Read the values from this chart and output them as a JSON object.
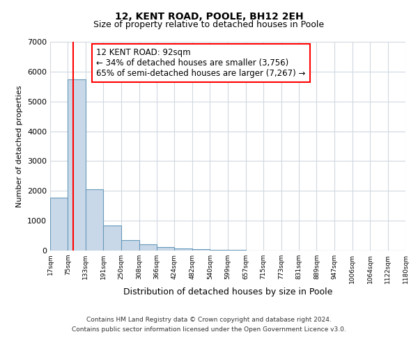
{
  "title": "12, KENT ROAD, POOLE, BH12 2EH",
  "subtitle": "Size of property relative to detached houses in Poole",
  "xlabel": "Distribution of detached houses by size in Poole",
  "ylabel": "Number of detached properties",
  "bar_edges": [
    17,
    75,
    133,
    191,
    250,
    308,
    366,
    424,
    482,
    540,
    599,
    657,
    715,
    773,
    831,
    889,
    947,
    1006,
    1064,
    1122,
    1180
  ],
  "bar_heights": [
    1780,
    5750,
    2050,
    830,
    350,
    220,
    110,
    60,
    40,
    25,
    15,
    10,
    5,
    3,
    2,
    2,
    1,
    1,
    0,
    1
  ],
  "tick_labels": [
    "17sqm",
    "75sqm",
    "133sqm",
    "191sqm",
    "250sqm",
    "308sqm",
    "366sqm",
    "424sqm",
    "482sqm",
    "540sqm",
    "599sqm",
    "657sqm",
    "715sqm",
    "773sqm",
    "831sqm",
    "889sqm",
    "947sqm",
    "1006sqm",
    "1064sqm",
    "1122sqm",
    "1180sqm"
  ],
  "bar_color": "#c8d8e8",
  "bar_edge_color": "#6899bb",
  "red_line_x": 92,
  "annotation_line1": "12 KENT ROAD: 92sqm",
  "annotation_line2": "← 34% of detached houses are smaller (3,756)",
  "annotation_line3": "65% of semi-detached houses are larger (7,267) →",
  "ylim": [
    0,
    7000
  ],
  "yticks": [
    0,
    1000,
    2000,
    3000,
    4000,
    5000,
    6000,
    7000
  ],
  "footer1": "Contains HM Land Registry data © Crown copyright and database right 2024.",
  "footer2": "Contains public sector information licensed under the Open Government Licence v3.0.",
  "background_color": "#ffffff",
  "plot_background_color": "#ffffff",
  "grid_color": "#d0d8e0"
}
